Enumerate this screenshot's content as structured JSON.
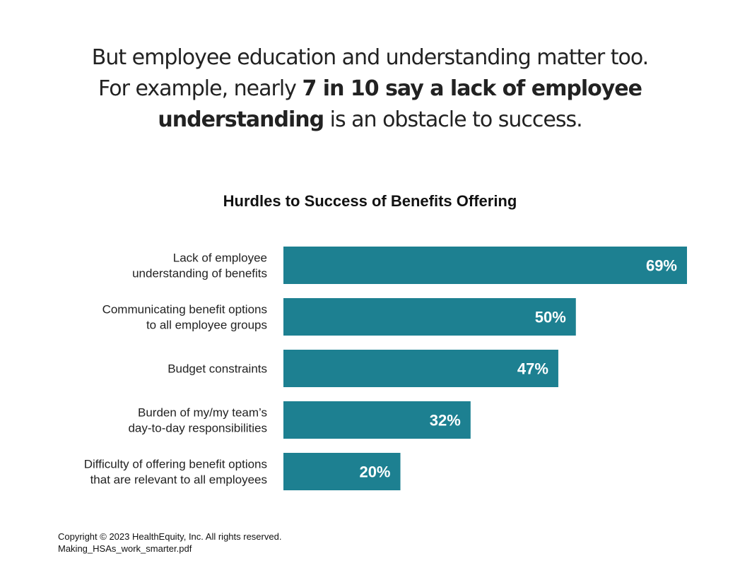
{
  "headline": {
    "line1": "But employee education and understanding matter too.",
    "line2_pre": "For example, nearly ",
    "line2_bold": "7 in 10 say a lack of employee",
    "line3_bold": "understanding",
    "line3_post": " is an obstacle to success."
  },
  "footer": {
    "copyright": "Copyright © 2023 HealthEquity, Inc. All rights reserved.",
    "filename": "Making_HSAs_work_smarter.pdf"
  },
  "colors": {
    "bar": "#1d8091",
    "bar_label": "#ffffff",
    "category_text": "#222222"
  },
  "chart_data": {
    "type": "bar",
    "orientation": "horizontal",
    "title": "Hurdles to Success of Benefits Offering",
    "categories": [
      [
        "Lack of employee",
        "understanding of benefits"
      ],
      [
        "Communicating benefit options",
        "to all employee groups"
      ],
      [
        "Budget constraints"
      ],
      [
        "Burden of my/my team’s",
        "day-to-day responsibilities"
      ],
      [
        "Difficulty of offering benefit options",
        "that are relevant to all employees"
      ]
    ],
    "values": [
      69,
      50,
      47,
      32,
      20
    ],
    "value_labels": [
      "69%",
      "50%",
      "47%",
      "32%",
      "20%"
    ],
    "unit": "%",
    "xlim": [
      0,
      69
    ],
    "grid": false,
    "legend": "none"
  }
}
